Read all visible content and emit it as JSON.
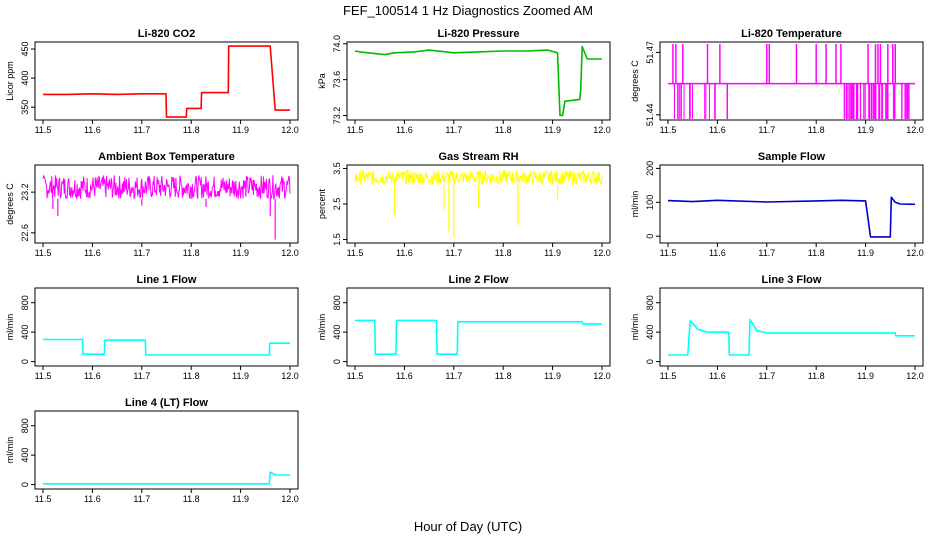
{
  "figure": {
    "title": "FEF_100514  1 Hz Diagnostics Zoomed AM",
    "xlabel": "Hour of Day (UTC)"
  },
  "chart_data": [
    {
      "type": "line",
      "title": "Li-820 CO2",
      "xlabel": "",
      "ylabel": "Licor ppm",
      "xlim": [
        11.5,
        12.0
      ],
      "ylim": [
        328,
        462
      ],
      "xticks": [
        11.5,
        11.6,
        11.7,
        11.8,
        11.9,
        12.0
      ],
      "yticks": [
        350,
        400,
        450
      ],
      "ytick_labels": [
        "350",
        "400",
        "450"
      ],
      "color": "#ff0000",
      "grid": false,
      "series": [
        {
          "x": [
            11.5,
            11.55,
            11.6,
            11.65,
            11.7,
            11.749,
            11.75,
            11.79,
            11.791,
            11.82,
            11.821,
            11.875,
            11.876,
            11.96,
            11.97,
            12.0
          ],
          "y": [
            372,
            372,
            373,
            372,
            373,
            373,
            333,
            333,
            348,
            348,
            375,
            375,
            455,
            455,
            345,
            345
          ]
        }
      ]
    },
    {
      "type": "line",
      "title": "Li-820 Pressure",
      "xlabel": "",
      "ylabel": "kPa",
      "xlim": [
        11.5,
        12.0
      ],
      "ylim": [
        73.15,
        74.02
      ],
      "xticks": [
        11.5,
        11.6,
        11.7,
        11.8,
        11.9,
        12.0
      ],
      "yticks": [
        73.2,
        73.6,
        74.0
      ],
      "ytick_labels": [
        "73.2",
        "73.6",
        "74.0"
      ],
      "color": "#00bb00",
      "grid": false,
      "series": [
        {
          "x": [
            11.5,
            11.51,
            11.56,
            11.58,
            11.62,
            11.65,
            11.7,
            11.75,
            11.8,
            11.85,
            11.89,
            11.91,
            11.915,
            11.92,
            11.925,
            11.955,
            11.957,
            11.96,
            11.97,
            11.98,
            12.0
          ],
          "y": [
            73.92,
            73.91,
            73.88,
            73.9,
            73.91,
            73.93,
            73.9,
            73.91,
            73.92,
            73.92,
            73.93,
            73.9,
            73.2,
            73.2,
            73.36,
            73.38,
            73.5,
            73.97,
            73.83,
            73.83,
            73.83
          ]
        }
      ]
    },
    {
      "type": "line",
      "title": "Li-820 Temperature",
      "xlabel": "",
      "ylabel": "degrees C",
      "xlim": [
        11.5,
        12.0
      ],
      "ylim": [
        51.4375,
        51.475
      ],
      "xticks": [
        11.5,
        11.6,
        11.7,
        11.8,
        11.9,
        12.0
      ],
      "yticks": [
        51.44,
        51.47
      ],
      "ytick_labels": [
        "51.44",
        "51.47"
      ],
      "color": "#ff00ff",
      "grid": false,
      "base": 51.455,
      "high": 51.474,
      "low": 51.438,
      "series": [
        {
          "x": [
            11.51,
            11.516,
            11.52,
            11.53,
            11.58,
            11.595,
            11.605,
            11.62,
            11.7,
            11.705,
            11.76,
            11.8,
            11.82,
            11.84,
            11.85,
            11.905,
            11.92,
            11.925,
            11.93,
            11.945,
            11.955,
            11.96,
            11.985
          ],
          "y": [
            51.474,
            51.474,
            51.438,
            51.474,
            51.474,
            51.438,
            51.474,
            51.438,
            51.474,
            51.474,
            51.474,
            51.474,
            51.474,
            51.474,
            51.474,
            51.474,
            51.474,
            51.474,
            51.474,
            51.474,
            51.474,
            51.474,
            51.438
          ]
        }
      ]
    },
    {
      "type": "line",
      "title": "Ambient Box Temperature",
      "xlabel": "",
      "ylabel": "degrees C",
      "xlim": [
        11.5,
        12.0
      ],
      "ylim": [
        22.45,
        23.6
      ],
      "xticks": [
        11.5,
        11.6,
        11.7,
        11.8,
        11.9,
        12.0
      ],
      "yticks": [
        22.6,
        23.2
      ],
      "ytick_labels": [
        "22.6",
        "23.2"
      ],
      "color": "#ff00ff",
      "grid": false,
      "band": [
        23.1,
        23.45
      ],
      "series": [
        {
          "x": [
            11.52,
            11.53,
            11.7,
            11.83,
            11.96,
            11.97
          ],
          "y": [
            22.95,
            22.85,
            23.0,
            22.98,
            22.85,
            22.5
          ]
        }
      ]
    },
    {
      "type": "line",
      "title": "Gas Stream RH",
      "xlabel": "",
      "ylabel": "percent",
      "xlim": [
        11.5,
        12.0
      ],
      "ylim": [
        1.4,
        3.6
      ],
      "xticks": [
        11.5,
        11.6,
        11.7,
        11.8,
        11.9,
        12.0
      ],
      "yticks": [
        1.5,
        2.5,
        3.5
      ],
      "ytick_labels": [
        "1.5",
        "2.5",
        "3.5"
      ],
      "color": "#ffff00",
      "grid": false,
      "band": [
        3.05,
        3.45
      ],
      "series": [
        {
          "x": [
            11.58,
            11.68,
            11.69,
            11.7,
            11.75,
            11.83,
            11.91
          ],
          "y": [
            2.2,
            2.35,
            1.7,
            1.55,
            2.4,
            1.9,
            2.6
          ]
        }
      ]
    },
    {
      "type": "line",
      "title": "Sample Flow",
      "xlabel": "",
      "ylabel": "ml/min",
      "xlim": [
        11.5,
        12.0
      ],
      "ylim": [
        -20,
        210
      ],
      "xticks": [
        11.5,
        11.6,
        11.7,
        11.8,
        11.9,
        12.0
      ],
      "yticks": [
        0,
        100,
        200
      ],
      "ytick_labels": [
        "0",
        "100",
        "200"
      ],
      "color": "#0000cc",
      "grid": false,
      "series": [
        {
          "x": [
            11.5,
            11.55,
            11.6,
            11.7,
            11.8,
            11.85,
            11.9,
            11.91,
            11.95,
            11.952,
            11.96,
            11.97,
            12.0
          ],
          "y": [
            105,
            102,
            106,
            101,
            104,
            106,
            104,
            -2,
            -2,
            115,
            100,
            95,
            94
          ]
        }
      ]
    },
    {
      "type": "line",
      "title": "Line 1 Flow",
      "xlabel": "",
      "ylabel": "ml/min",
      "xlim": [
        11.5,
        12.0
      ],
      "ylim": [
        -60,
        1000
      ],
      "xticks": [
        11.5,
        11.6,
        11.7,
        11.8,
        11.9,
        12.0
      ],
      "yticks": [
        0,
        400,
        800
      ],
      "ytick_labels": [
        "0",
        "400",
        "800"
      ],
      "color": "#00ffff",
      "grid": false,
      "series": [
        {
          "x": [
            11.5,
            11.58,
            11.581,
            11.624,
            11.625,
            11.707,
            11.708,
            11.958,
            11.959,
            12.0
          ],
          "y": [
            300,
            300,
            100,
            100,
            290,
            290,
            90,
            90,
            250,
            250
          ]
        }
      ]
    },
    {
      "type": "line",
      "title": "Line 2 Flow",
      "xlabel": "",
      "ylabel": "ml/min",
      "xlim": [
        11.5,
        12.0
      ],
      "ylim": [
        -60,
        1000
      ],
      "xticks": [
        11.5,
        11.6,
        11.7,
        11.8,
        11.9,
        12.0
      ],
      "yticks": [
        0,
        400,
        800
      ],
      "ytick_labels": [
        "0",
        "400",
        "800"
      ],
      "color": "#00ffff",
      "grid": false,
      "series": [
        {
          "x": [
            11.5,
            11.54,
            11.541,
            11.583,
            11.584,
            11.665,
            11.666,
            11.707,
            11.708,
            11.96,
            11.961,
            12.0
          ],
          "y": [
            560,
            560,
            100,
            100,
            560,
            560,
            100,
            100,
            540,
            540,
            510,
            510
          ]
        }
      ]
    },
    {
      "type": "line",
      "title": "Line 3 Flow",
      "xlabel": "",
      "ylabel": "ml/min",
      "xlim": [
        11.5,
        12.0
      ],
      "ylim": [
        -60,
        1000
      ],
      "xticks": [
        11.5,
        11.6,
        11.7,
        11.8,
        11.9,
        12.0
      ],
      "yticks": [
        0,
        400,
        800
      ],
      "ytick_labels": [
        "0",
        "400",
        "800"
      ],
      "color": "#00ffff",
      "grid": false,
      "series": [
        {
          "x": [
            11.5,
            11.54,
            11.545,
            11.56,
            11.58,
            11.623,
            11.624,
            11.664,
            11.666,
            11.68,
            11.7,
            11.9,
            11.96,
            11.961,
            12.0
          ],
          "y": [
            90,
            90,
            560,
            440,
            400,
            400,
            90,
            90,
            570,
            420,
            390,
            390,
            390,
            350,
            350
          ]
        }
      ]
    },
    {
      "type": "line",
      "title": "Line 4 (LT) Flow",
      "xlabel": "",
      "ylabel": "ml/min",
      "xlim": [
        11.5,
        12.0
      ],
      "ylim": [
        -60,
        1000
      ],
      "xticks": [
        11.5,
        11.6,
        11.7,
        11.8,
        11.9,
        12.0
      ],
      "yticks": [
        0,
        400,
        800
      ],
      "ytick_labels": [
        "0",
        "400",
        "800"
      ],
      "color": "#00ffff",
      "grid": false,
      "series": [
        {
          "x": [
            11.5,
            11.95,
            11.958,
            11.96,
            11.97,
            12.0
          ],
          "y": [
            10,
            10,
            10,
            170,
            130,
            130
          ]
        }
      ]
    }
  ]
}
